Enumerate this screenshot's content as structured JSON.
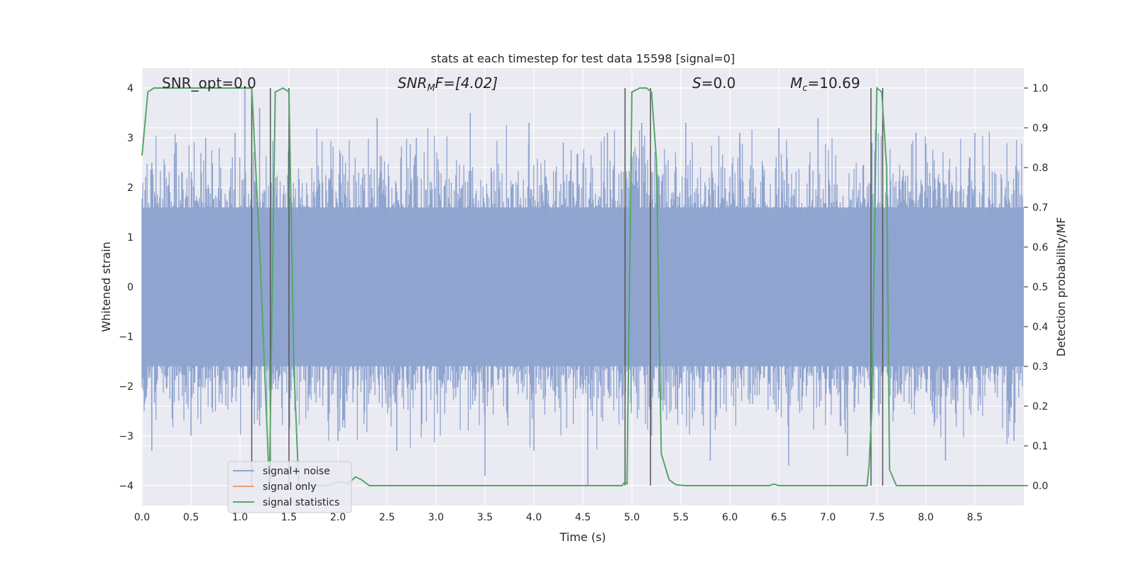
{
  "chart_data": {
    "type": "line",
    "title": "stats at each timestep for test data 15598 [signal=0]",
    "xlabel": "Time (s)",
    "ylabel": "Whitened strain",
    "y2label": "Detection probability/MF",
    "xlim": [
      0.0,
      9.0
    ],
    "ylim": [
      -4.4,
      4.4
    ],
    "y2lim": [
      -0.05,
      1.05
    ],
    "x_ticks": [
      "0.0",
      "0.5",
      "1.0",
      "1.5",
      "2.0",
      "2.5",
      "3.0",
      "3.5",
      "4.0",
      "4.5",
      "5.0",
      "5.5",
      "6.0",
      "6.5",
      "7.0",
      "7.5",
      "8.0",
      "8.5"
    ],
    "y_ticks": [
      "4",
      "3",
      "2",
      "1",
      "0",
      "−1",
      "−2",
      "−3",
      "−4"
    ],
    "y2_ticks": [
      "1.0",
      "0.9",
      "0.8",
      "0.7",
      "0.6",
      "0.5",
      "0.4",
      "0.3",
      "0.2",
      "0.1",
      "0.0"
    ],
    "grid": true,
    "legend_position": "lower-left",
    "legend": [
      {
        "label": "signal+ noise",
        "color": "#8fa4cf"
      },
      {
        "label": "signal only",
        "color": "#e8a07a"
      },
      {
        "label": "signal statistics",
        "color": "#55a868"
      }
    ],
    "annotations": {
      "snr_opt": "SNR_opt=0.0",
      "snr_mf_main": "SNR",
      "snr_mf_sub": "M",
      "snr_mf_tail": "F=[4.02]",
      "s_main": "S",
      "s_tail": "=0.0",
      "mc_main": "M",
      "mc_sub": "c",
      "mc_tail": "=10.69"
    },
    "series": [
      {
        "name": "signal statistics",
        "axis": "right",
        "x": [
          0.0,
          0.06,
          0.12,
          0.5,
          1.0,
          1.12,
          1.2,
          1.3,
          1.36,
          1.44,
          1.5,
          1.55,
          1.6,
          1.7,
          1.8,
          1.9,
          2.0,
          2.1,
          2.18,
          2.24,
          2.32,
          2.5,
          2.8,
          3.0,
          4.0,
          4.9,
          4.93,
          4.95,
          5.0,
          5.08,
          5.15,
          5.2,
          5.25,
          5.3,
          5.38,
          5.45,
          5.55,
          6.0,
          6.4,
          6.45,
          6.5,
          7.0,
          7.4,
          7.42,
          7.45,
          7.5,
          7.55,
          7.6,
          7.63,
          7.7,
          8.0,
          8.5,
          9.0
        ],
        "y": [
          0.83,
          0.99,
          1.0,
          1.0,
          1.0,
          1.0,
          0.6,
          0.0,
          0.99,
          1.0,
          0.99,
          0.3,
          0.0,
          0.0,
          0.0,
          0.0,
          0.01,
          0.005,
          0.022,
          0.015,
          0.0,
          0.0,
          0.0,
          0.0,
          0.0,
          0.0,
          0.01,
          0.005,
          0.99,
          1.0,
          1.0,
          0.99,
          0.82,
          0.08,
          0.015,
          0.002,
          0.0,
          0.0,
          0.0,
          0.004,
          0.0,
          0.0,
          0.0,
          0.05,
          0.2,
          1.0,
          0.99,
          0.8,
          0.04,
          0.0,
          0.0,
          0.0,
          0.0
        ]
      }
    ],
    "noise": {
      "name": "signal+ noise",
      "band_max": 1.6,
      "band_min": -1.6,
      "peaks": [
        [
          0.1,
          2.5
        ],
        [
          0.35,
          2.9
        ],
        [
          0.65,
          3.0
        ],
        [
          0.95,
          3.1
        ],
        [
          1.05,
          4.0
        ],
        [
          1.2,
          3.6
        ],
        [
          2.4,
          3.4
        ],
        [
          2.8,
          3.0
        ],
        [
          3.35,
          3.5
        ],
        [
          3.95,
          3.3
        ],
        [
          4.3,
          2.9
        ],
        [
          4.75,
          3.1
        ],
        [
          5.1,
          3.3
        ],
        [
          5.55,
          3.3
        ],
        [
          6.1,
          3.1
        ],
        [
          6.5,
          3.2
        ],
        [
          6.9,
          3.4
        ],
        [
          7.45,
          2.9
        ],
        [
          7.9,
          3.1
        ],
        [
          8.5,
          3.1
        ]
      ],
      "troughs": [
        [
          0.1,
          -3.3
        ],
        [
          0.5,
          -3.0
        ],
        [
          1.2,
          -2.8
        ],
        [
          2.0,
          -3.1
        ],
        [
          2.6,
          -3.3
        ],
        [
          3.5,
          -3.8
        ],
        [
          4.0,
          -3.3
        ],
        [
          4.55,
          -4.0
        ],
        [
          5.2,
          -3.0
        ],
        [
          5.8,
          -3.5
        ],
        [
          6.6,
          -3.6
        ],
        [
          7.2,
          -3.4
        ],
        [
          8.2,
          -3.5
        ],
        [
          8.9,
          -3.1
        ]
      ]
    },
    "vlines": [
      {
        "x": 1.12,
        "ymin": -0.0,
        "ymax": 1.0
      },
      {
        "x": 1.31,
        "ymin": -0.0,
        "ymax": 1.0
      },
      {
        "x": 1.5,
        "ymin": -0.0,
        "ymax": 1.0
      },
      {
        "x": 4.93,
        "ymin": -0.0,
        "ymax": 1.0
      },
      {
        "x": 5.19,
        "ymin": -0.0,
        "ymax": 1.0
      },
      {
        "x": 7.44,
        "ymin": -0.0,
        "ymax": 1.0
      },
      {
        "x": 7.56,
        "ymin": -0.0,
        "ymax": 1.0
      }
    ]
  }
}
